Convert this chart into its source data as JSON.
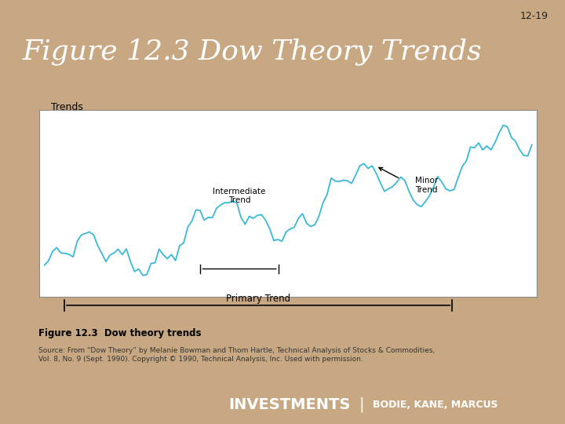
{
  "slide_bg": "#c8a882",
  "header_bg": "#1a1f6e",
  "header_text": "Figure 12.3 Dow Theory Trends",
  "header_text_color": "#ffffff",
  "footer_bg": "#1a1f6e",
  "footer_text": "INVESTMENTS",
  "footer_subtext": "BODIE, KANE, MARCUS",
  "slide_number": "12-19",
  "chart_bg": "#ffffff",
  "chart_outer_bg": "#d8e8f0",
  "caption_bg": "#cce0ee",
  "caption_title": "Figure 12.3  Dow theory trends",
  "caption_source": "Source: From “Dow Theory” by Melanie Bowman and Thom Hartle, Technical Analysis of Stocks & Commodities,\nVol. 8, No. 9 (Sept. 1990). Copyright © 1990, Technical Analysis, Inc. Used with permission.",
  "chart_label": "Trends",
  "primary_trend_label": "Primary Trend",
  "intermediate_trend_label": "Intermediate\nTrend",
  "minor_trend_label": "Minor\nTrend",
  "line_color": "#3bb8d8",
  "annotation_color": "#000000"
}
